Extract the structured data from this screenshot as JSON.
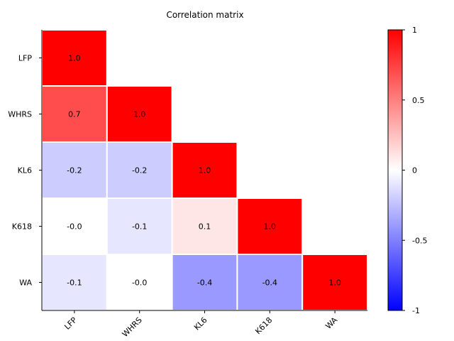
{
  "chart_data": {
    "type": "heatmap",
    "title": "Correlation matrix",
    "variables": [
      "LFP",
      "WHRS",
      "KL6",
      "K618",
      "WA"
    ],
    "matrix": [
      [
        1.0,
        null,
        null,
        null,
        null
      ],
      [
        0.7,
        1.0,
        null,
        null,
        null
      ],
      [
        -0.2,
        -0.2,
        1.0,
        null,
        null
      ],
      [
        -0.0,
        -0.1,
        0.1,
        1.0,
        null
      ],
      [
        -0.1,
        -0.0,
        -0.4,
        -0.4,
        1.0
      ]
    ],
    "cell_labels": [
      [
        "1.0",
        null,
        null,
        null,
        null
      ],
      [
        "0.7",
        "1.0",
        null,
        null,
        null
      ],
      [
        "-0.2",
        "-0.2",
        "1.0",
        null,
        null
      ],
      [
        "-0.0",
        "-0.1",
        "0.1",
        "1.0",
        null
      ],
      [
        "-0.1",
        "-0.0",
        "-0.4",
        "-0.4",
        "1.0"
      ]
    ],
    "triangle": "lower",
    "colormap": "bwr",
    "colorbar": {
      "range": [
        -1,
        1
      ],
      "ticks": [
        1,
        0.5,
        0,
        -0.5,
        -1
      ],
      "tick_labels": [
        "1",
        "0.5",
        "0",
        "-0.5",
        "-1"
      ]
    },
    "colors": {
      "low": "#0000ff",
      "mid": "#ffffff",
      "high": "#ff0000"
    }
  }
}
